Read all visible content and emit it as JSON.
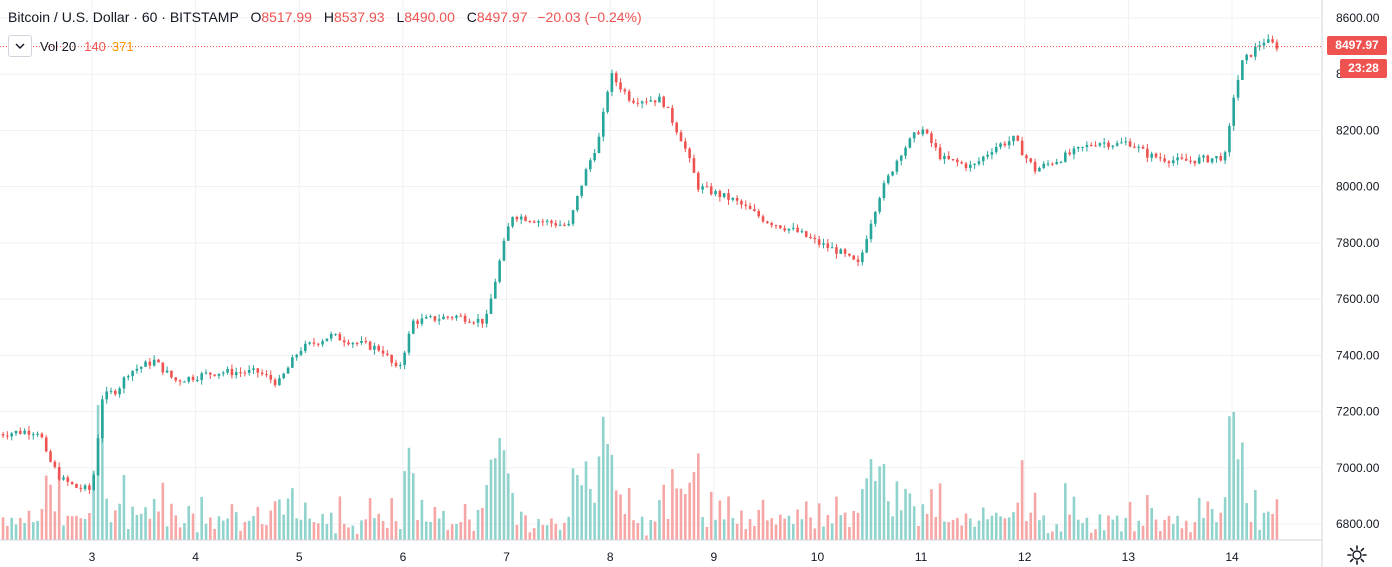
{
  "legend": {
    "title": "Bitcoin / U.S. Dollar · 60 · BITSTAMP",
    "open_key": "O",
    "open": "8517.99",
    "high_key": "H",
    "high": "8537.93",
    "low_key": "L",
    "low": "8490.00",
    "close_key": "C",
    "close": "8497.97",
    "change": "−20.03 (−0.24%)"
  },
  "volume_study": {
    "label": "Vol 20",
    "value": "140",
    "ma": "371"
  },
  "price_tag": "8497.97",
  "countdown_tag": "23:28",
  "icons": {
    "collapse": "chevron-down-icon",
    "settings": "gear-icon"
  },
  "colors": {
    "up": "#26a69a",
    "down": "#ef5350",
    "vol_up": "#8fd3cc",
    "vol_down": "#f6a6a4",
    "grid": "#eef0f3"
  },
  "chart_data": {
    "type": "candlestick",
    "y_axis": {
      "ticks": [
        "8600.00",
        "8400.00",
        "8200.00",
        "8000.00",
        "7800.00",
        "7600.00",
        "7400.00",
        "7200.00",
        "7000.00",
        "6800.00"
      ],
      "ylim": [
        6800,
        8600
      ]
    },
    "x_axis": {
      "ticks": [
        "3",
        "4",
        "5",
        "6",
        "7",
        "8",
        "9",
        "10",
        "11",
        "12",
        "13",
        "14"
      ]
    },
    "grid": true,
    "series": [
      {
        "name": "Bitcoin / U.S. Dollar",
        "close_anchors": [
          [
            2.1,
            7120
          ],
          [
            2.35,
            7130
          ],
          [
            2.5,
            7130
          ],
          [
            2.55,
            7050
          ],
          [
            2.7,
            6960
          ],
          [
            2.85,
            6930
          ],
          [
            3.0,
            6920
          ],
          [
            3.1,
            7250
          ],
          [
            3.25,
            7280
          ],
          [
            3.35,
            7340
          ],
          [
            3.6,
            7380
          ],
          [
            3.8,
            7310
          ],
          [
            4.2,
            7340
          ],
          [
            4.6,
            7340
          ],
          [
            4.8,
            7300
          ],
          [
            5.0,
            7420
          ],
          [
            5.3,
            7470
          ],
          [
            5.6,
            7440
          ],
          [
            5.8,
            7420
          ],
          [
            5.95,
            7340
          ],
          [
            6.1,
            7520
          ],
          [
            6.5,
            7540
          ],
          [
            6.8,
            7520
          ],
          [
            6.95,
            7760
          ],
          [
            7.05,
            7900
          ],
          [
            7.3,
            7880
          ],
          [
            7.6,
            7860
          ],
          [
            7.75,
            8040
          ],
          [
            7.9,
            8180
          ],
          [
            8.0,
            8400
          ],
          [
            8.2,
            8310
          ],
          [
            8.5,
            8310
          ],
          [
            8.7,
            8160
          ],
          [
            8.85,
            8000
          ],
          [
            9.2,
            7950
          ],
          [
            9.5,
            7880
          ],
          [
            9.8,
            7840
          ],
          [
            10.0,
            7800
          ],
          [
            10.2,
            7770
          ],
          [
            10.4,
            7720
          ],
          [
            10.5,
            7860
          ],
          [
            10.6,
            7970
          ],
          [
            10.8,
            8120
          ],
          [
            11.0,
            8210
          ],
          [
            11.2,
            8100
          ],
          [
            11.5,
            8070
          ],
          [
            11.7,
            8140
          ],
          [
            11.9,
            8170
          ],
          [
            12.0,
            8110
          ],
          [
            12.1,
            8060
          ],
          [
            12.4,
            8110
          ],
          [
            12.7,
            8160
          ],
          [
            12.9,
            8150
          ],
          [
            13.0,
            8160
          ],
          [
            13.2,
            8110
          ],
          [
            13.5,
            8090
          ],
          [
            13.8,
            8100
          ],
          [
            13.95,
            8110
          ],
          [
            14.0,
            8300
          ],
          [
            14.1,
            8440
          ],
          [
            14.3,
            8520
          ],
          [
            14.45,
            8498
          ]
        ]
      }
    ],
    "volume": {
      "label": "Vol 20"
    }
  }
}
